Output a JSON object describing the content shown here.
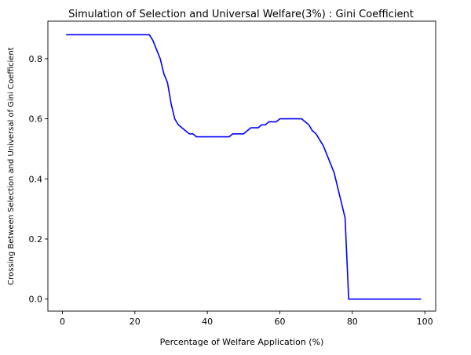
{
  "chart_data": {
    "type": "line",
    "title": "Simulation of Selection and Universal Welfare(3%) : Gini Coefficient",
    "xlabel": "Percentage of Welfare Application (%)",
    "ylabel": "Crossing Between Selection and Universal of Gini Coefficient",
    "xlim": [
      -4,
      103
    ],
    "ylim": [
      -0.04,
      0.925
    ],
    "xticks": [
      0,
      20,
      40,
      60,
      80,
      100
    ],
    "yticks": [
      0.0,
      0.2,
      0.4,
      0.6,
      0.8
    ],
    "xtick_labels": [
      "0",
      "20",
      "40",
      "60",
      "80",
      "100"
    ],
    "ytick_labels": [
      "0.0",
      "0.2",
      "0.4",
      "0.6",
      "0.8"
    ],
    "grid": false,
    "legend": "none",
    "series": [
      {
        "color": "#0000ff",
        "x": [
          1,
          5,
          10,
          15,
          20,
          24,
          25,
          26,
          27,
          28,
          29,
          30,
          31,
          32,
          33,
          34,
          35,
          36,
          37,
          38,
          40,
          42,
          44,
          46,
          47,
          48,
          50,
          52,
          54,
          55,
          56,
          57,
          58,
          59,
          60,
          62,
          64,
          66,
          67,
          68,
          69,
          70,
          72,
          74,
          75,
          76,
          77,
          78,
          79,
          80,
          85,
          90,
          95,
          99
        ],
        "y": [
          0.88,
          0.88,
          0.88,
          0.88,
          0.88,
          0.88,
          0.86,
          0.83,
          0.8,
          0.75,
          0.72,
          0.65,
          0.6,
          0.58,
          0.57,
          0.56,
          0.55,
          0.55,
          0.54,
          0.54,
          0.54,
          0.54,
          0.54,
          0.54,
          0.55,
          0.55,
          0.55,
          0.57,
          0.57,
          0.58,
          0.58,
          0.59,
          0.59,
          0.59,
          0.6,
          0.6,
          0.6,
          0.6,
          0.59,
          0.58,
          0.56,
          0.55,
          0.51,
          0.45,
          0.42,
          0.37,
          0.32,
          0.27,
          0.0,
          0.0,
          0.0,
          0.0,
          0.0,
          0.0
        ]
      }
    ]
  }
}
